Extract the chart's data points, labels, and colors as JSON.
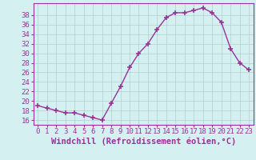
{
  "x": [
    0,
    1,
    2,
    3,
    4,
    5,
    6,
    7,
    8,
    9,
    10,
    11,
    12,
    13,
    14,
    15,
    16,
    17,
    18,
    19,
    20,
    21,
    22,
    23
  ],
  "y": [
    19,
    18.5,
    18,
    17.5,
    17.5,
    17,
    16.5,
    16,
    19.5,
    23,
    27,
    30,
    32,
    35,
    37.5,
    38.5,
    38.5,
    39,
    39.5,
    38.5,
    36.5,
    31,
    28,
    26.5
  ],
  "line_color": "#993399",
  "marker": "+",
  "marker_size": 4,
  "bg_color": "#d5f0f0",
  "grid_color": "#b0d0d0",
  "xlabel": "Windchill (Refroidissement éolien,°C)",
  "yticks": [
    16,
    18,
    20,
    22,
    24,
    26,
    28,
    30,
    32,
    34,
    36,
    38
  ],
  "ylim": [
    15.0,
    40.5
  ],
  "xlim": [
    -0.5,
    23.5
  ],
  "tick_fontsize": 6.5,
  "xlabel_fontsize": 7.5,
  "tick_color": "#993399",
  "label_color": "#993399",
  "spine_color": "#993399"
}
